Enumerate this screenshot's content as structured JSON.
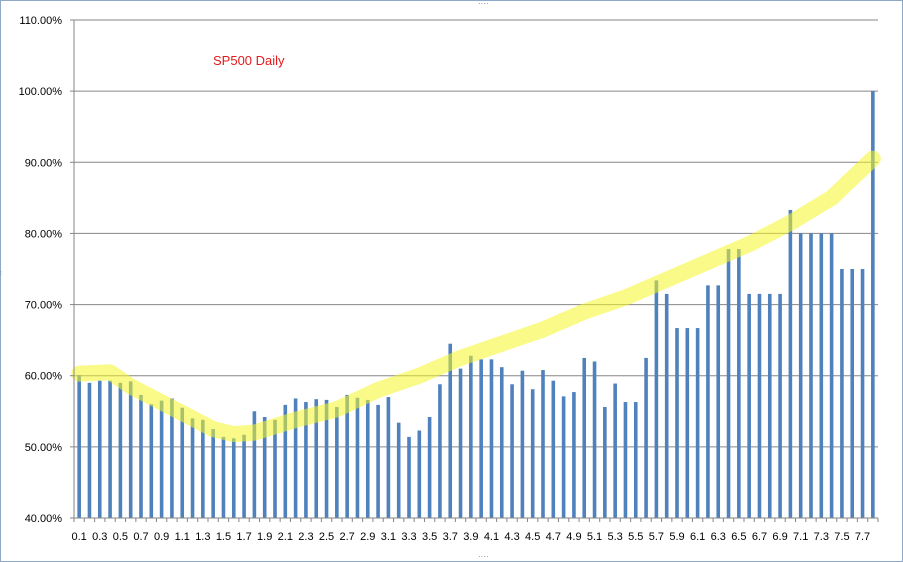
{
  "colors": {
    "bar": "#4f81bd",
    "gridline": "#868686",
    "highlight": "#f5f528",
    "title": "#e31a1c",
    "frame": "#8ea9c8"
  },
  "chart_data": {
    "type": "bar",
    "title": "SP500 Daily",
    "xlabel": "",
    "ylabel": "",
    "ylim": [
      40,
      110
    ],
    "y_tick_labels": [
      "40.00%",
      "50.00%",
      "60.00%",
      "70.00%",
      "80.00%",
      "90.00%",
      "100.00%",
      "110.00%"
    ],
    "grid": true,
    "legend": "none",
    "categories": [
      "0.1",
      "0.2",
      "0.3",
      "0.4",
      "0.5",
      "0.6",
      "0.7",
      "0.8",
      "0.9",
      "1",
      "1.1",
      "1.2",
      "1.3",
      "1.4",
      "1.5",
      "1.6",
      "1.7",
      "1.8",
      "1.9",
      "2",
      "2.1",
      "2.2",
      "2.3",
      "2.4",
      "2.5",
      "2.6",
      "2.7",
      "2.8",
      "2.9",
      "3",
      "3.1",
      "3.2",
      "3.3",
      "3.4",
      "3.5",
      "3.6",
      "3.7",
      "3.8",
      "3.9",
      "4",
      "4.1",
      "4.2",
      "4.3",
      "4.4",
      "4.5",
      "4.6",
      "4.7",
      "4.8",
      "4.9",
      "5",
      "5.1",
      "5.2",
      "5.3",
      "5.4",
      "5.5",
      "5.6",
      "5.7",
      "5.8",
      "5.9",
      "6",
      "6.1",
      "6.2",
      "6.3",
      "6.4",
      "6.5",
      "6.6",
      "6.7",
      "6.8",
      "6.9",
      "7",
      "7.1",
      "7.2",
      "7.3",
      "7.4",
      "7.5",
      "7.6",
      "7.7",
      "7.8"
    ],
    "x_tick_labels": [
      "0.1",
      "0.3",
      "0.5",
      "0.7",
      "0.9",
      "1.1",
      "1.3",
      "1.5",
      "1.7",
      "1.9",
      "2.1",
      "2.3",
      "2.5",
      "2.7",
      "2.9",
      "3.1",
      "3.3",
      "3.5",
      "3.7",
      "3.9",
      "4.1",
      "4.3",
      "4.5",
      "4.7",
      "4.9",
      "5.1",
      "5.3",
      "5.5",
      "5.7",
      "5.9",
      "6.1",
      "6.3",
      "6.5",
      "6.7",
      "6.9",
      "7.1",
      "7.3",
      "7.5",
      "7.7"
    ],
    "values": [
      60.1,
      59.0,
      59.3,
      59.3,
      59.0,
      59.2,
      57.3,
      56.0,
      56.5,
      56.8,
      55.5,
      54.0,
      53.8,
      52.5,
      51.4,
      51.2,
      51.7,
      55.0,
      54.2,
      53.8,
      55.9,
      56.8,
      56.3,
      56.7,
      56.6,
      55.6,
      57.3,
      56.9,
      56.6,
      55.9,
      57.0,
      53.4,
      51.4,
      52.3,
      54.2,
      58.8,
      64.5,
      61.0,
      62.8,
      62.3,
      62.3,
      61.2,
      58.8,
      60.7,
      58.1,
      60.8,
      59.3,
      57.1,
      57.7,
      62.5,
      62.0,
      55.6,
      58.9,
      56.3,
      56.3,
      62.5,
      73.4,
      71.5,
      66.7,
      66.7,
      66.7,
      72.7,
      72.7,
      77.8,
      77.8,
      71.5,
      71.5,
      71.5,
      71.5,
      83.3,
      80.0,
      80.0,
      80.0,
      80.0,
      75.0,
      75.0,
      75.0,
      100.0
    ],
    "highlight_curve": [
      [
        0.1,
        60.3
      ],
      [
        0.4,
        60.5
      ],
      [
        0.6,
        58.5
      ],
      [
        1.0,
        55.5
      ],
      [
        1.4,
        52.5
      ],
      [
        1.6,
        51.8
      ],
      [
        1.8,
        52.0
      ],
      [
        2.2,
        53.8
      ],
      [
        2.6,
        55.3
      ],
      [
        3.0,
        58.0
      ],
      [
        3.4,
        60.0
      ],
      [
        3.8,
        62.5
      ],
      [
        4.2,
        64.5
      ],
      [
        4.6,
        66.5
      ],
      [
        5.0,
        69.0
      ],
      [
        5.4,
        71.0
      ],
      [
        5.8,
        73.5
      ],
      [
        6.2,
        76.0
      ],
      [
        6.6,
        78.5
      ],
      [
        7.0,
        81.5
      ],
      [
        7.4,
        85.0
      ],
      [
        7.8,
        90.5
      ]
    ]
  }
}
